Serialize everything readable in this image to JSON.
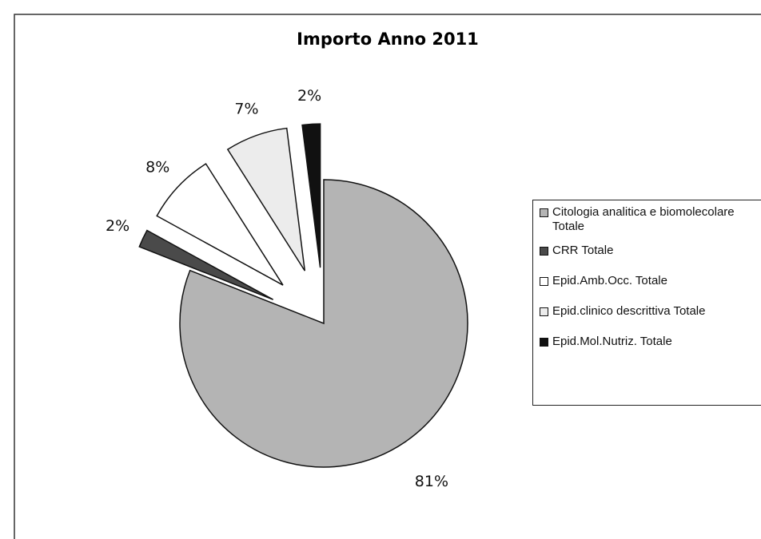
{
  "chart_data": {
    "type": "pie",
    "title": "Importo Anno 2011",
    "categories": [
      "Citologia analitica e biomolecolare Totale",
      "CRR Totale",
      "Epid.Amb.Occ. Totale",
      "Epid.clinico descrittiva Totale",
      "Epid.Mol.Nutriz. Totale"
    ],
    "values": [
      81,
      2,
      8,
      7,
      2
    ],
    "value_labels": [
      "81%",
      "2%",
      "8%",
      "7%",
      "2%"
    ],
    "colors": [
      "#b4b4b4",
      "#4a4a4a",
      "#ffffff",
      "#ececec",
      "#111111"
    ],
    "legend": "right"
  }
}
